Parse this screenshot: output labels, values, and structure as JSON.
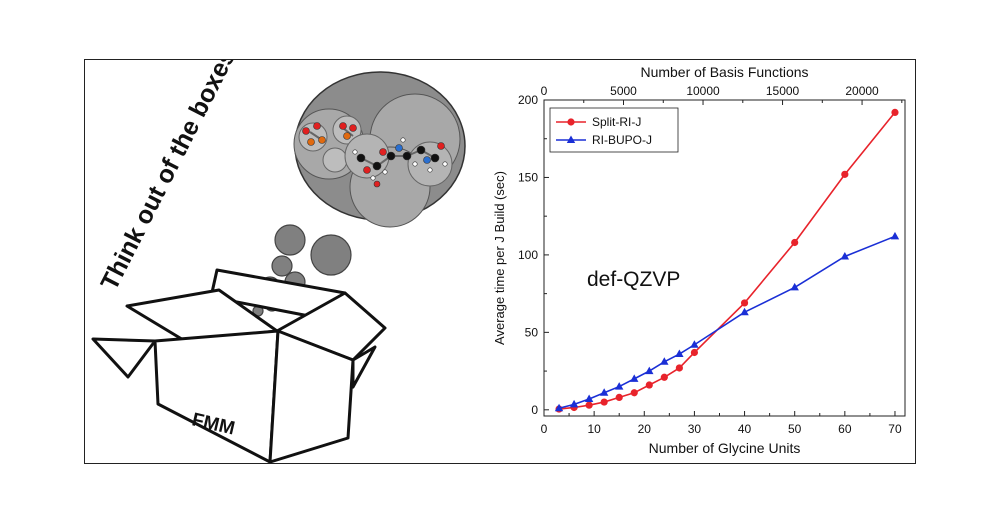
{
  "illustration": {
    "slogan": "Think out of the boxes!",
    "box_label": "FMM"
  },
  "chart_data": {
    "type": "line",
    "title": "",
    "annotation": "def-QZVP",
    "xlabel": "Number of Glycine Units",
    "x2label": "Number of Basis Functions",
    "ylabel": "Average time per J Build (sec)",
    "xlim": [
      0,
      72
    ],
    "ylim": [
      -4,
      200
    ],
    "x2lim": [
      0,
      22700
    ],
    "xticks": [
      0,
      10,
      20,
      30,
      40,
      50,
      60,
      70
    ],
    "x2ticks": [
      0,
      5000,
      10000,
      15000,
      20000
    ],
    "yticks": [
      0,
      50,
      100,
      150,
      200
    ],
    "legend_position": "top-left",
    "series": [
      {
        "name": "Split-RI-J",
        "color": "#e8232b",
        "marker": "circle",
        "x": [
          3,
          6,
          9,
          12,
          15,
          18,
          21,
          24,
          27,
          30,
          40,
          50,
          60,
          70
        ],
        "values": [
          0.5,
          1.5,
          3,
          5,
          8,
          11,
          16,
          21,
          27,
          37,
          69,
          108,
          152,
          192
        ]
      },
      {
        "name": "RI-BUPO-J",
        "color": "#1a2fd6",
        "marker": "triangle",
        "x": [
          3,
          6,
          9,
          12,
          15,
          18,
          21,
          24,
          27,
          30,
          40,
          50,
          60,
          70
        ],
        "values": [
          1,
          3.5,
          7,
          11,
          15,
          20,
          25,
          31,
          36,
          42,
          63,
          79,
          99,
          112
        ]
      }
    ]
  }
}
